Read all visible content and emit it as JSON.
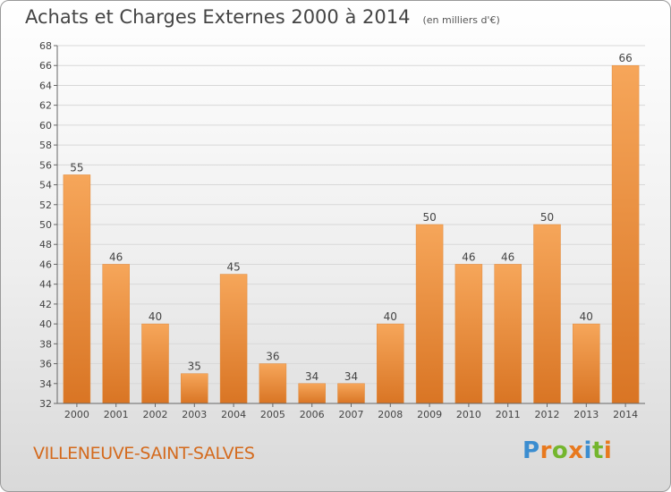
{
  "header": {
    "title": "Achats et Charges Externes 2000 à 2014",
    "unit": "(en milliers d'€)"
  },
  "footer": {
    "commune": "VILLENEUVE-SAINT-SALVES",
    "logo": "Proxiti"
  },
  "colors": {
    "bar_light": "#f6a65a",
    "bar_dark": "#d97524",
    "commune_text": "#d46a1d",
    "logo_letters": [
      "#3b8dd0",
      "#e8791e",
      "#74b62e",
      "#e8791e",
      "#3b8dd0",
      "#74b62e",
      "#e8791e"
    ]
  },
  "chart_data": {
    "type": "bar",
    "title": "Achats et Charges Externes 2000 à 2014",
    "subtitle": "(en milliers d'€)",
    "xlabel": "",
    "ylabel": "",
    "categories": [
      "2000",
      "2001",
      "2002",
      "2003",
      "2004",
      "2005",
      "2006",
      "2007",
      "2008",
      "2009",
      "2010",
      "2011",
      "2012",
      "2013",
      "2014"
    ],
    "values": [
      55,
      46,
      40,
      35,
      45,
      36,
      34,
      34,
      40,
      50,
      46,
      46,
      50,
      40,
      66
    ],
    "ylim": [
      32,
      68
    ],
    "yticks": [
      32,
      34,
      36,
      38,
      40,
      42,
      44,
      46,
      48,
      50,
      52,
      54,
      56,
      58,
      60,
      62,
      64,
      66,
      68
    ],
    "grid": true,
    "legend": "none"
  }
}
